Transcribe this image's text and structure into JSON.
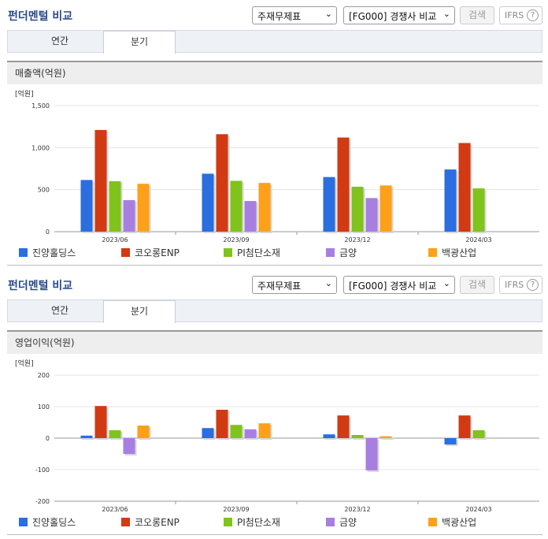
{
  "sections": [
    {
      "title": "펀더멘털 비교",
      "select1": "주재무제표",
      "select2": "[FG000] 경쟁사 비교",
      "search_btn": "검색",
      "ifrs": "IFRS",
      "ifrs_help": "?",
      "tabs": [
        "연간",
        "분기"
      ],
      "active_tab": 1,
      "metric": "매출액(억원)"
    },
    {
      "title": "펀더멘털 비교",
      "select1": "주재무제표",
      "select2": "[FG000] 경쟁사 비교",
      "search_btn": "검색",
      "ifrs": "IFRS",
      "ifrs_help": "?",
      "tabs": [
        "연간",
        "분기"
      ],
      "active_tab": 1,
      "metric": "영업이익(억원)"
    }
  ],
  "chart_data": [
    {
      "type": "bar",
      "unit_label": "[억원]",
      "categories": [
        "2023/06",
        "2023/09",
        "2023/12",
        "2024/03"
      ],
      "ylim": [
        0,
        1500
      ],
      "yticks": [
        0,
        500,
        1000,
        1500
      ],
      "ytick_labels": [
        "0",
        "500",
        "1,000",
        "1,500"
      ],
      "grid": true,
      "legend_position": "bottom",
      "series": [
        {
          "name": "진양홀딩스",
          "color": "#2a6ee0",
          "values": [
            615,
            690,
            650,
            740
          ]
        },
        {
          "name": "코오롱ENP",
          "color": "#d13a12",
          "values": [
            1210,
            1160,
            1120,
            1055
          ]
        },
        {
          "name": "PI첨단소재",
          "color": "#7fc31c",
          "values": [
            600,
            605,
            535,
            515
          ]
        },
        {
          "name": "금양",
          "color": "#a77fe0",
          "values": [
            375,
            365,
            400,
            null
          ]
        },
        {
          "name": "백광산업",
          "color": "#ffa01a",
          "values": [
            570,
            580,
            550,
            null
          ]
        }
      ]
    },
    {
      "type": "bar",
      "unit_label": "[억원]",
      "categories": [
        "2023/06",
        "2023/09",
        "2023/12",
        "2024/03"
      ],
      "ylim": [
        -200,
        200
      ],
      "yticks": [
        -200,
        -100,
        0,
        100,
        200
      ],
      "ytick_labels": [
        "-200",
        "-100",
        "0",
        "100",
        "200"
      ],
      "grid": true,
      "legend_position": "bottom",
      "series": [
        {
          "name": "진양홀딩스",
          "color": "#2a6ee0",
          "values": [
            8,
            32,
            12,
            -20
          ]
        },
        {
          "name": "코오롱ENP",
          "color": "#d13a12",
          "values": [
            102,
            90,
            72,
            72
          ]
        },
        {
          "name": "PI첨단소재",
          "color": "#7fc31c",
          "values": [
            25,
            42,
            10,
            25
          ]
        },
        {
          "name": "금양",
          "color": "#a77fe0",
          "values": [
            -50,
            28,
            -102,
            null
          ]
        },
        {
          "name": "백광산업",
          "color": "#ffa01a",
          "values": [
            40,
            47,
            6,
            null
          ]
        }
      ]
    }
  ]
}
